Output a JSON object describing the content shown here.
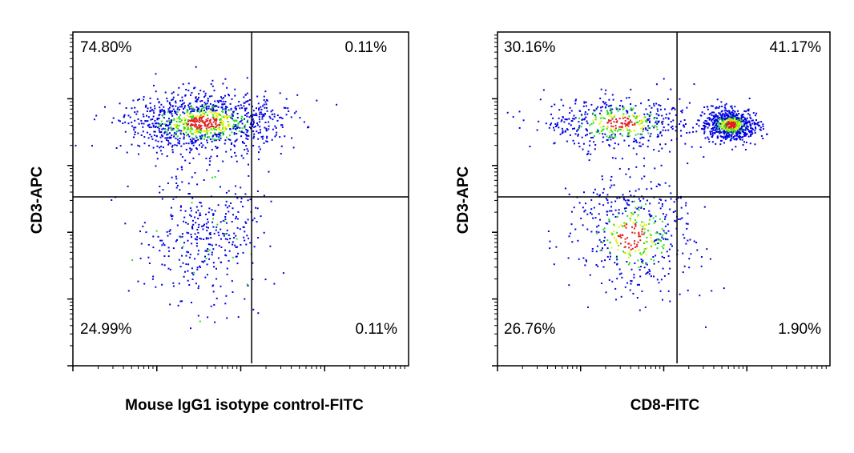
{
  "chart_data": [
    {
      "type": "scatter",
      "subtype": "flow-cytometry-dot-plot",
      "xlabel": "Mouse IgG1 isotype control-FITC",
      "ylabel": "CD3-APC",
      "x_scale": "log",
      "y_scale": "log",
      "xlim_log10": [
        0,
        4
      ],
      "ylim_log10": [
        0,
        5
      ],
      "tick_labels": "none",
      "grid": false,
      "gate_log10": {
        "x": 2.13,
        "y": 2.53
      },
      "quadrants": {
        "upper_left": "74.80%",
        "upper_right": "0.11%",
        "lower_left": "24.99%",
        "lower_right": "0.11%"
      },
      "populations": [
        {
          "x": 1.55,
          "y": 3.65,
          "sx": 0.45,
          "sy": 0.22,
          "n": 1100
        },
        {
          "x": 1.55,
          "y": 1.9,
          "sx": 0.35,
          "sy": 0.5,
          "n": 380
        }
      ],
      "density_colors": [
        "#0000e0",
        "#20e020",
        "#f0f000",
        "#e02020"
      ]
    },
    {
      "type": "scatter",
      "subtype": "flow-cytometry-dot-plot",
      "xlabel": "CD8-FITC",
      "ylabel": "CD3-APC",
      "x_scale": "log",
      "y_scale": "log",
      "xlim_log10": [
        0,
        4
      ],
      "ylim_log10": [
        0,
        5
      ],
      "tick_labels": "none",
      "grid": false,
      "gate_log10": {
        "x": 2.16,
        "y": 2.53
      },
      "quadrants": {
        "upper_left": "30.16%",
        "upper_right": "41.17%",
        "lower_left": "26.76%",
        "lower_right": "1.90%"
      },
      "populations": [
        {
          "x": 1.45,
          "y": 3.65,
          "sx": 0.45,
          "sy": 0.2,
          "n": 520
        },
        {
          "x": 2.8,
          "y": 3.62,
          "sx": 0.16,
          "sy": 0.12,
          "n": 700
        },
        {
          "x": 1.6,
          "y": 1.95,
          "sx": 0.35,
          "sy": 0.45,
          "n": 500
        }
      ],
      "density_colors": [
        "#0000e0",
        "#20e020",
        "#f0f000",
        "#e02020"
      ]
    }
  ]
}
